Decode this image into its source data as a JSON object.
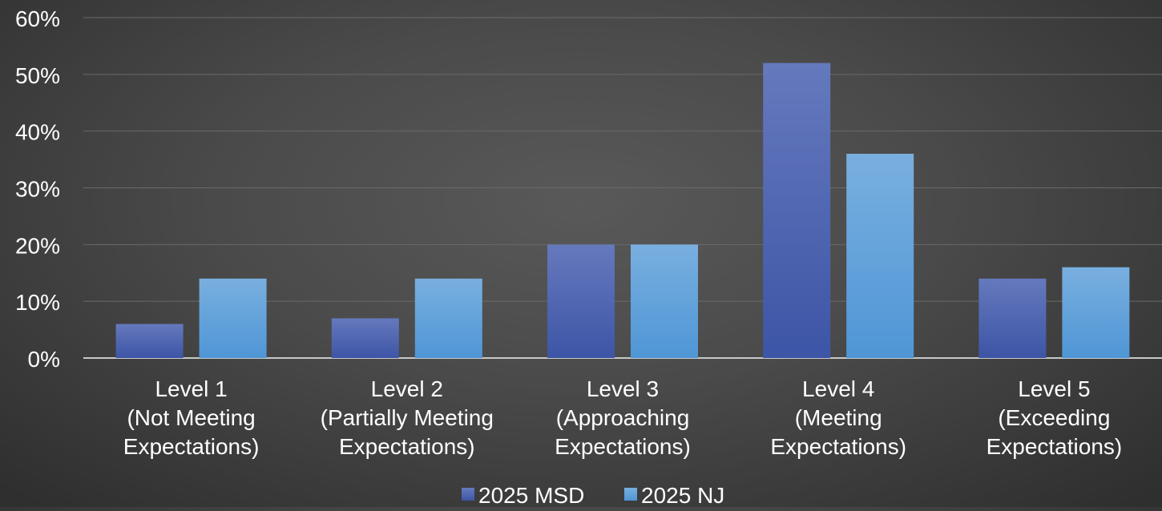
{
  "chart_data": {
    "type": "bar",
    "title": "",
    "xlabel": "",
    "ylabel": "",
    "categories": [
      [
        "Level 1",
        "(Not Meeting",
        "Expectations)"
      ],
      [
        "Level 2",
        "(Partially Meeting",
        "Expectations)"
      ],
      [
        "Level 3",
        "(Approaching",
        "Expectations)"
      ],
      [
        "Level 4",
        "(Meeting",
        "Expectations)"
      ],
      [
        "Level 5",
        "(Exceeding",
        "Expectations)"
      ]
    ],
    "series": [
      {
        "name": "2025 MSD",
        "values": [
          6,
          7,
          20,
          52,
          14
        ]
      },
      {
        "name": "2025 NJ",
        "values": [
          14,
          14,
          20,
          36,
          16
        ]
      }
    ],
    "ylim": [
      0,
      60
    ],
    "yticks": [
      "0%",
      "10%",
      "20%",
      "30%",
      "40%",
      "50%",
      "60%"
    ],
    "grid": true,
    "legend_position": "bottom",
    "colors": {
      "2025 MSD": "#4a68b8",
      "2025 NJ": "#5a9fd8",
      "gridline": "#6a6a6a",
      "axis": "#c8c8c8"
    }
  }
}
